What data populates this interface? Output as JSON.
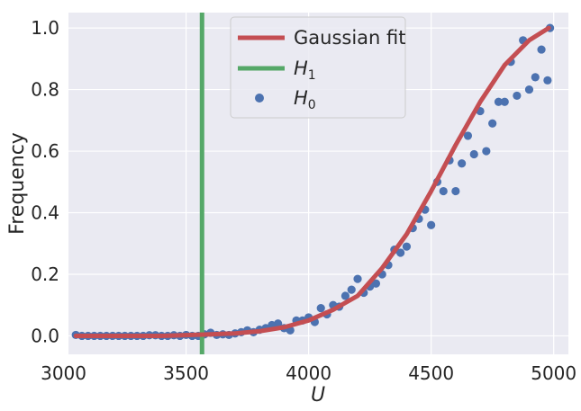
{
  "chart_data": {
    "type": "scatter",
    "xlabel": "U",
    "ylabel": "Frequency",
    "xlim": [
      3020,
      5060
    ],
    "ylim": [
      -0.06,
      1.05
    ],
    "xticks": [
      3000,
      3500,
      4000,
      4500,
      5000
    ],
    "yticks": [
      0.0,
      0.2,
      0.4,
      0.6,
      0.8,
      1.0
    ],
    "xtick_labels": [
      "3000",
      "3500",
      "4000",
      "4500",
      "5000"
    ],
    "ytick_labels": [
      "0.0",
      "0.2",
      "0.4",
      "0.6",
      "0.8",
      "1.0"
    ],
    "grid": true,
    "legend_position": "top-center",
    "colors": {
      "background": "#eaeaf2",
      "grid": "#ffffff",
      "fit": "#c44e52",
      "h1": "#55a868",
      "h0": "#4c72b0"
    },
    "vline": {
      "x": 3565
    },
    "fit": {
      "x": [
        3050,
        3400,
        3600,
        3700,
        3800,
        3900,
        4000,
        4100,
        4200,
        4300,
        4400,
        4500,
        4600,
        4700,
        4800,
        4900,
        4980
      ],
      "y": [
        0.0,
        0.0,
        0.005,
        0.008,
        0.015,
        0.028,
        0.05,
        0.085,
        0.13,
        0.22,
        0.33,
        0.47,
        0.62,
        0.76,
        0.88,
        0.96,
        1.0
      ]
    },
    "h0": {
      "x": [
        3050,
        3075,
        3100,
        3125,
        3150,
        3175,
        3200,
        3225,
        3250,
        3275,
        3300,
        3325,
        3350,
        3375,
        3400,
        3425,
        3450,
        3475,
        3500,
        3525,
        3550,
        3575,
        3600,
        3625,
        3650,
        3675,
        3700,
        3725,
        3750,
        3775,
        3800,
        3825,
        3850,
        3875,
        3900,
        3925,
        3950,
        3975,
        4000,
        4025,
        4050,
        4075,
        4100,
        4125,
        4150,
        4175,
        4200,
        4225,
        4250,
        4275,
        4300,
        4325,
        4350,
        4375,
        4400,
        4425,
        4450,
        4475,
        4500,
        4525,
        4550,
        4575,
        4600,
        4625,
        4650,
        4675,
        4700,
        4725,
        4750,
        4775,
        4800,
        4825,
        4850,
        4875,
        4900,
        4925,
        4950,
        4975,
        4985
      ],
      "y": [
        0.003,
        0.0,
        0.0,
        0.0,
        0.0,
        0.0,
        0.0,
        0.0,
        0.0,
        0.0,
        0.0,
        0.0,
        0.002,
        0.002,
        0.0,
        0.0,
        0.002,
        0.0,
        0.003,
        0.0,
        0.0,
        0.005,
        0.01,
        0.003,
        0.005,
        0.003,
        0.008,
        0.012,
        0.018,
        0.012,
        0.02,
        0.025,
        0.035,
        0.04,
        0.025,
        0.018,
        0.05,
        0.05,
        0.06,
        0.045,
        0.09,
        0.07,
        0.1,
        0.095,
        0.13,
        0.15,
        0.185,
        0.14,
        0.16,
        0.17,
        0.2,
        0.23,
        0.28,
        0.27,
        0.29,
        0.35,
        0.38,
        0.41,
        0.36,
        0.5,
        0.47,
        0.57,
        0.47,
        0.56,
        0.65,
        0.59,
        0.73,
        0.6,
        0.69,
        0.76,
        0.76,
        0.89,
        0.78,
        0.96,
        0.8,
        0.84,
        0.93,
        0.83,
        1.0
      ]
    },
    "legend": [
      {
        "key": "fit",
        "label": "Gaussian fit"
      },
      {
        "key": "h1",
        "label": "H",
        "sub": "1"
      },
      {
        "key": "h0",
        "label": "H",
        "sub": "0"
      }
    ]
  }
}
